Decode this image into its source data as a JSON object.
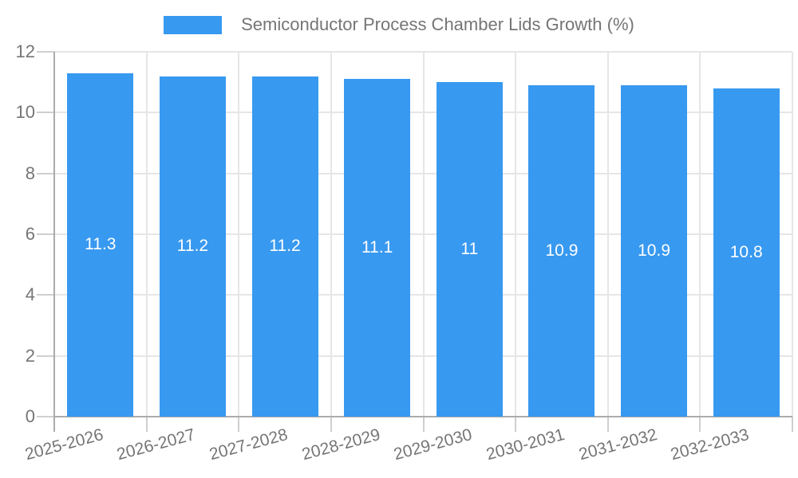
{
  "chart_data": {
    "type": "bar",
    "title": "Semiconductor Process Chamber Lids Growth (%)",
    "legend": {
      "position": "top",
      "label": "Semiconductor Process Chamber Lids Growth (%)"
    },
    "categories": [
      "2025-2026",
      "2026-2027",
      "2027-2028",
      "2028-2029",
      "2029-2030",
      "2030-2031",
      "2031-2032",
      "2032-2033"
    ],
    "values": [
      11.3,
      11.2,
      11.2,
      11.1,
      11,
      10.9,
      10.9,
      10.8
    ],
    "value_labels": [
      "11.3",
      "11.2",
      "11.2",
      "11.1",
      "11",
      "10.9",
      "10.9",
      "10.8"
    ],
    "xlabel": "",
    "ylabel": "",
    "ylim": [
      0,
      12
    ],
    "yticks": [
      0,
      2,
      4,
      6,
      8,
      10,
      12
    ],
    "grid": true,
    "colors": {
      "bar": "#3899f0",
      "bar_value_text": "#ffffff",
      "axis_text": "#757575",
      "gridline": "#e6e6e6",
      "axis_line": "#acacac",
      "tick_mark": "#cfcfcf"
    }
  }
}
